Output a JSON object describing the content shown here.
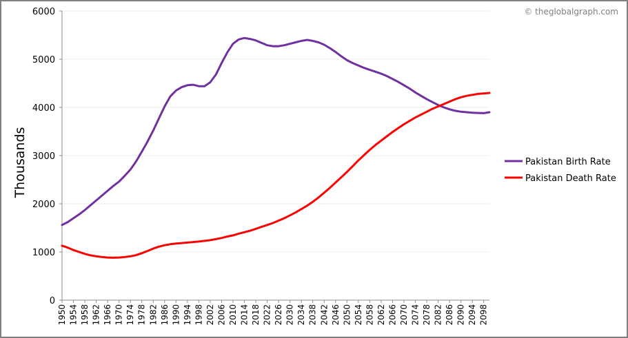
{
  "copyright": "© theglobalgraph.com",
  "chart_data": {
    "type": "line",
    "title": "",
    "xlabel": "",
    "ylabel": "Thousands",
    "ylim": [
      0,
      6000
    ],
    "yticks": [
      0,
      1000,
      2000,
      3000,
      4000,
      5000,
      6000
    ],
    "xlim": [
      1950,
      2100
    ],
    "xticks": [
      1950,
      1954,
      1958,
      1962,
      1966,
      1970,
      1974,
      1978,
      1982,
      1986,
      1990,
      1994,
      1998,
      2002,
      2006,
      2010,
      2014,
      2018,
      2022,
      2026,
      2030,
      2034,
      2038,
      2042,
      2046,
      2050,
      2054,
      2058,
      2062,
      2066,
      2070,
      2074,
      2078,
      2082,
      2086,
      2090,
      2094,
      2098
    ],
    "grid": "horizontal",
    "legend_position": "right",
    "series": [
      {
        "name": "Pakistan Birth Rate",
        "color": "#7030a0",
        "x": [
          1950,
          1952,
          1954,
          1956,
          1958,
          1960,
          1962,
          1964,
          1966,
          1968,
          1970,
          1972,
          1974,
          1976,
          1978,
          1980,
          1982,
          1984,
          1986,
          1988,
          1990,
          1992,
          1994,
          1996,
          1998,
          2000,
          2002,
          2004,
          2006,
          2008,
          2010,
          2012,
          2014,
          2016,
          2018,
          2020,
          2022,
          2024,
          2026,
          2028,
          2030,
          2032,
          2034,
          2036,
          2038,
          2040,
          2042,
          2044,
          2046,
          2048,
          2050,
          2052,
          2054,
          2056,
          2058,
          2060,
          2062,
          2064,
          2066,
          2068,
          2070,
          2072,
          2074,
          2076,
          2078,
          2080,
          2082,
          2084,
          2086,
          2088,
          2090,
          2092,
          2094,
          2096,
          2098,
          2100
        ],
        "values": [
          1560,
          1620,
          1700,
          1780,
          1870,
          1970,
          2070,
          2170,
          2270,
          2370,
          2460,
          2580,
          2710,
          2880,
          3080,
          3290,
          3520,
          3770,
          4020,
          4230,
          4350,
          4420,
          4460,
          4470,
          4440,
          4440,
          4520,
          4680,
          4920,
          5140,
          5320,
          5410,
          5440,
          5420,
          5390,
          5340,
          5290,
          5270,
          5270,
          5290,
          5320,
          5350,
          5380,
          5400,
          5380,
          5350,
          5300,
          5230,
          5150,
          5060,
          4980,
          4920,
          4870,
          4820,
          4780,
          4740,
          4700,
          4650,
          4590,
          4530,
          4460,
          4390,
          4310,
          4240,
          4170,
          4110,
          4050,
          4000,
          3960,
          3930,
          3910,
          3900,
          3890,
          3885,
          3880,
          3900
        ]
      },
      {
        "name": "Pakistan Death Rate",
        "color": "#ff0000",
        "x": [
          1950,
          1952,
          1954,
          1956,
          1958,
          1960,
          1962,
          1964,
          1966,
          1968,
          1970,
          1972,
          1974,
          1976,
          1978,
          1980,
          1982,
          1984,
          1986,
          1988,
          1990,
          1992,
          1994,
          1996,
          1998,
          2000,
          2002,
          2004,
          2006,
          2008,
          2010,
          2012,
          2014,
          2016,
          2018,
          2020,
          2022,
          2024,
          2026,
          2028,
          2030,
          2032,
          2034,
          2036,
          2038,
          2040,
          2042,
          2044,
          2046,
          2048,
          2050,
          2052,
          2054,
          2056,
          2058,
          2060,
          2062,
          2064,
          2066,
          2068,
          2070,
          2072,
          2074,
          2076,
          2078,
          2080,
          2082,
          2084,
          2086,
          2088,
          2090,
          2092,
          2094,
          2096,
          2098,
          2100
        ],
        "values": [
          1130,
          1090,
          1040,
          1000,
          960,
          930,
          910,
          895,
          885,
          880,
          885,
          895,
          910,
          935,
          975,
          1020,
          1070,
          1110,
          1140,
          1160,
          1175,
          1185,
          1195,
          1205,
          1215,
          1230,
          1245,
          1265,
          1290,
          1320,
          1345,
          1380,
          1410,
          1440,
          1480,
          1520,
          1560,
          1600,
          1650,
          1700,
          1760,
          1820,
          1890,
          1960,
          2040,
          2130,
          2230,
          2330,
          2440,
          2550,
          2660,
          2780,
          2900,
          3010,
          3120,
          3220,
          3310,
          3400,
          3490,
          3570,
          3650,
          3720,
          3790,
          3850,
          3910,
          3970,
          4020,
          4070,
          4120,
          4170,
          4210,
          4240,
          4260,
          4280,
          4290,
          4300
        ]
      }
    ]
  }
}
